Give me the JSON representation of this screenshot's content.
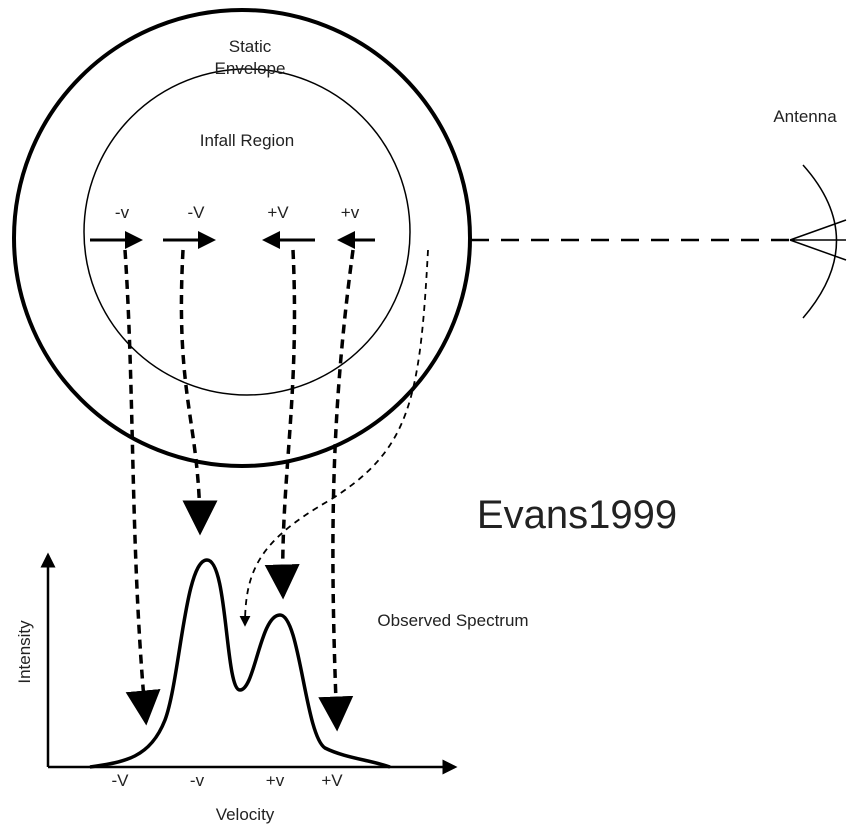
{
  "labels": {
    "static_envelope": [
      "Static",
      "Envelope"
    ],
    "infall_region": "Infall Region",
    "antenna": "Antenna",
    "citation": "Evans1999",
    "spectrum": "Observed Spectrum"
  },
  "arrows": [
    "-v",
    "-V",
    "+V",
    "+v"
  ],
  "axes": {
    "y_label": "Intensity",
    "x_label": "Velocity",
    "x_ticks": [
      "-V",
      "-v",
      "+v",
      "+V"
    ]
  }
}
